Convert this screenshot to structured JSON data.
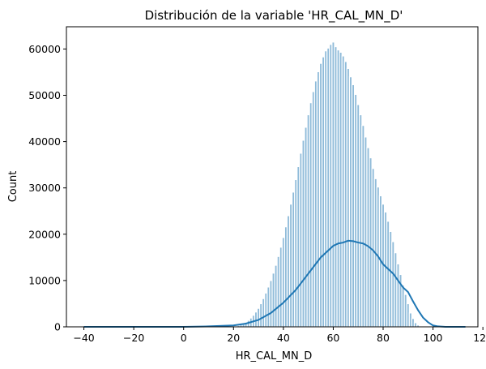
{
  "chart_data": {
    "type": "bar",
    "title": "Distribución de la variable 'HR_CAL_MN_D'",
    "xlabel": "HR_CAL_MN_D",
    "ylabel": "Count",
    "xlim": [
      -47,
      118
    ],
    "ylim": [
      0,
      64800
    ],
    "x_ticks": [
      -40,
      -20,
      0,
      20,
      40,
      60,
      80,
      100,
      120
    ],
    "y_ticks": [
      0,
      10000,
      20000,
      30000,
      40000,
      50000,
      60000
    ],
    "x_tick_labels": [
      "−40",
      "−20",
      "0",
      "20",
      "40",
      "60",
      "80",
      "100",
      "120"
    ],
    "y_tick_labels": [
      "0",
      "10000",
      "20000",
      "30000",
      "40000",
      "50000",
      "60000"
    ],
    "grid": false,
    "legend": false,
    "bar_color": "#1f77b4",
    "bar_edge_color": "#ffffff",
    "kde_color": "#1f77b4",
    "series": [
      {
        "kind": "histogram",
        "x": [
          20,
          21,
          22,
          23,
          24,
          25,
          26,
          27,
          28,
          29,
          30,
          31,
          32,
          33,
          34,
          35,
          36,
          37,
          38,
          39,
          40,
          41,
          42,
          43,
          44,
          45,
          46,
          47,
          48,
          49,
          50,
          51,
          52,
          53,
          54,
          55,
          56,
          57,
          58,
          59,
          60,
          61,
          62,
          63,
          64,
          65,
          66,
          67,
          68,
          69,
          70,
          71,
          72,
          73,
          74,
          75,
          76,
          77,
          78,
          79,
          80,
          81,
          82,
          83,
          84,
          85,
          86,
          87,
          88,
          89,
          90,
          91,
          92,
          93,
          94,
          95,
          96,
          97,
          98,
          99,
          100,
          101
        ],
        "values": [
          100,
          200,
          300,
          500,
          700,
          1000,
          1400,
          1900,
          2500,
          3200,
          4000,
          5000,
          6100,
          7300,
          8600,
          10000,
          11600,
          13300,
          15200,
          17200,
          19300,
          21600,
          24000,
          26500,
          29100,
          31800,
          34600,
          37500,
          40300,
          43100,
          45800,
          48400,
          50800,
          53100,
          55100,
          56900,
          58300,
          59600,
          60200,
          61000,
          61500,
          60500,
          59800,
          59300,
          58500,
          57300,
          55800,
          54000,
          52300,
          50200,
          48000,
          45800,
          43500,
          41000,
          38700,
          36500,
          34200,
          32000,
          30200,
          28300,
          26500,
          24800,
          22800,
          20600,
          18400,
          16000,
          13600,
          11300,
          9000,
          7000,
          5000,
          3000,
          1800,
          900,
          400,
          150,
          50,
          20,
          10,
          5,
          2,
          1
        ]
      },
      {
        "kind": "kde",
        "x": [
          -40,
          -10,
          0,
          10,
          20,
          25,
          30,
          35,
          40,
          45,
          50,
          55,
          60,
          62,
          64,
          66,
          68,
          70,
          72,
          74,
          76,
          78,
          80,
          82,
          84,
          86,
          88,
          90,
          92,
          94,
          96,
          98,
          100,
          102,
          105,
          113
        ],
        "values": [
          0,
          0,
          0,
          100,
          300,
          700,
          1500,
          3000,
          5200,
          8000,
          11500,
          15000,
          17500,
          18000,
          18200,
          18600,
          18500,
          18200,
          18000,
          17400,
          16500,
          15200,
          13500,
          12500,
          11500,
          10000,
          8500,
          7500,
          5500,
          3600,
          2000,
          1000,
          300,
          100,
          0,
          0
        ]
      }
    ]
  }
}
